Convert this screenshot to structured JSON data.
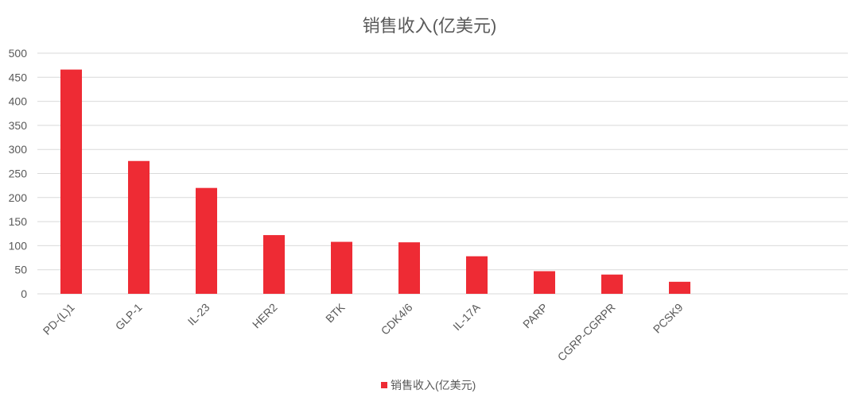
{
  "chart_data": {
    "type": "bar",
    "title": "销售收入(亿美元)",
    "categories": [
      "PD-(L)1",
      "GLP-1",
      "IL-23",
      "HER2",
      "BTK",
      "CDK4/6",
      "IL-17A",
      "PARP",
      "CGRP-CGRPR",
      "PCSK9"
    ],
    "series": [
      {
        "name": "销售收入(亿美元)",
        "values": [
          466,
          276,
          220,
          122,
          108,
          107,
          78,
          47,
          40,
          25
        ],
        "color": "#EE2B34"
      }
    ],
    "xlabel": "",
    "ylabel": "",
    "ylim": [
      0,
      500
    ],
    "yticks": [
      "0",
      "50",
      "100",
      "150",
      "200",
      "250",
      "300",
      "350",
      "400",
      "450",
      "500"
    ],
    "grid": true,
    "legend_position": "bottom"
  }
}
